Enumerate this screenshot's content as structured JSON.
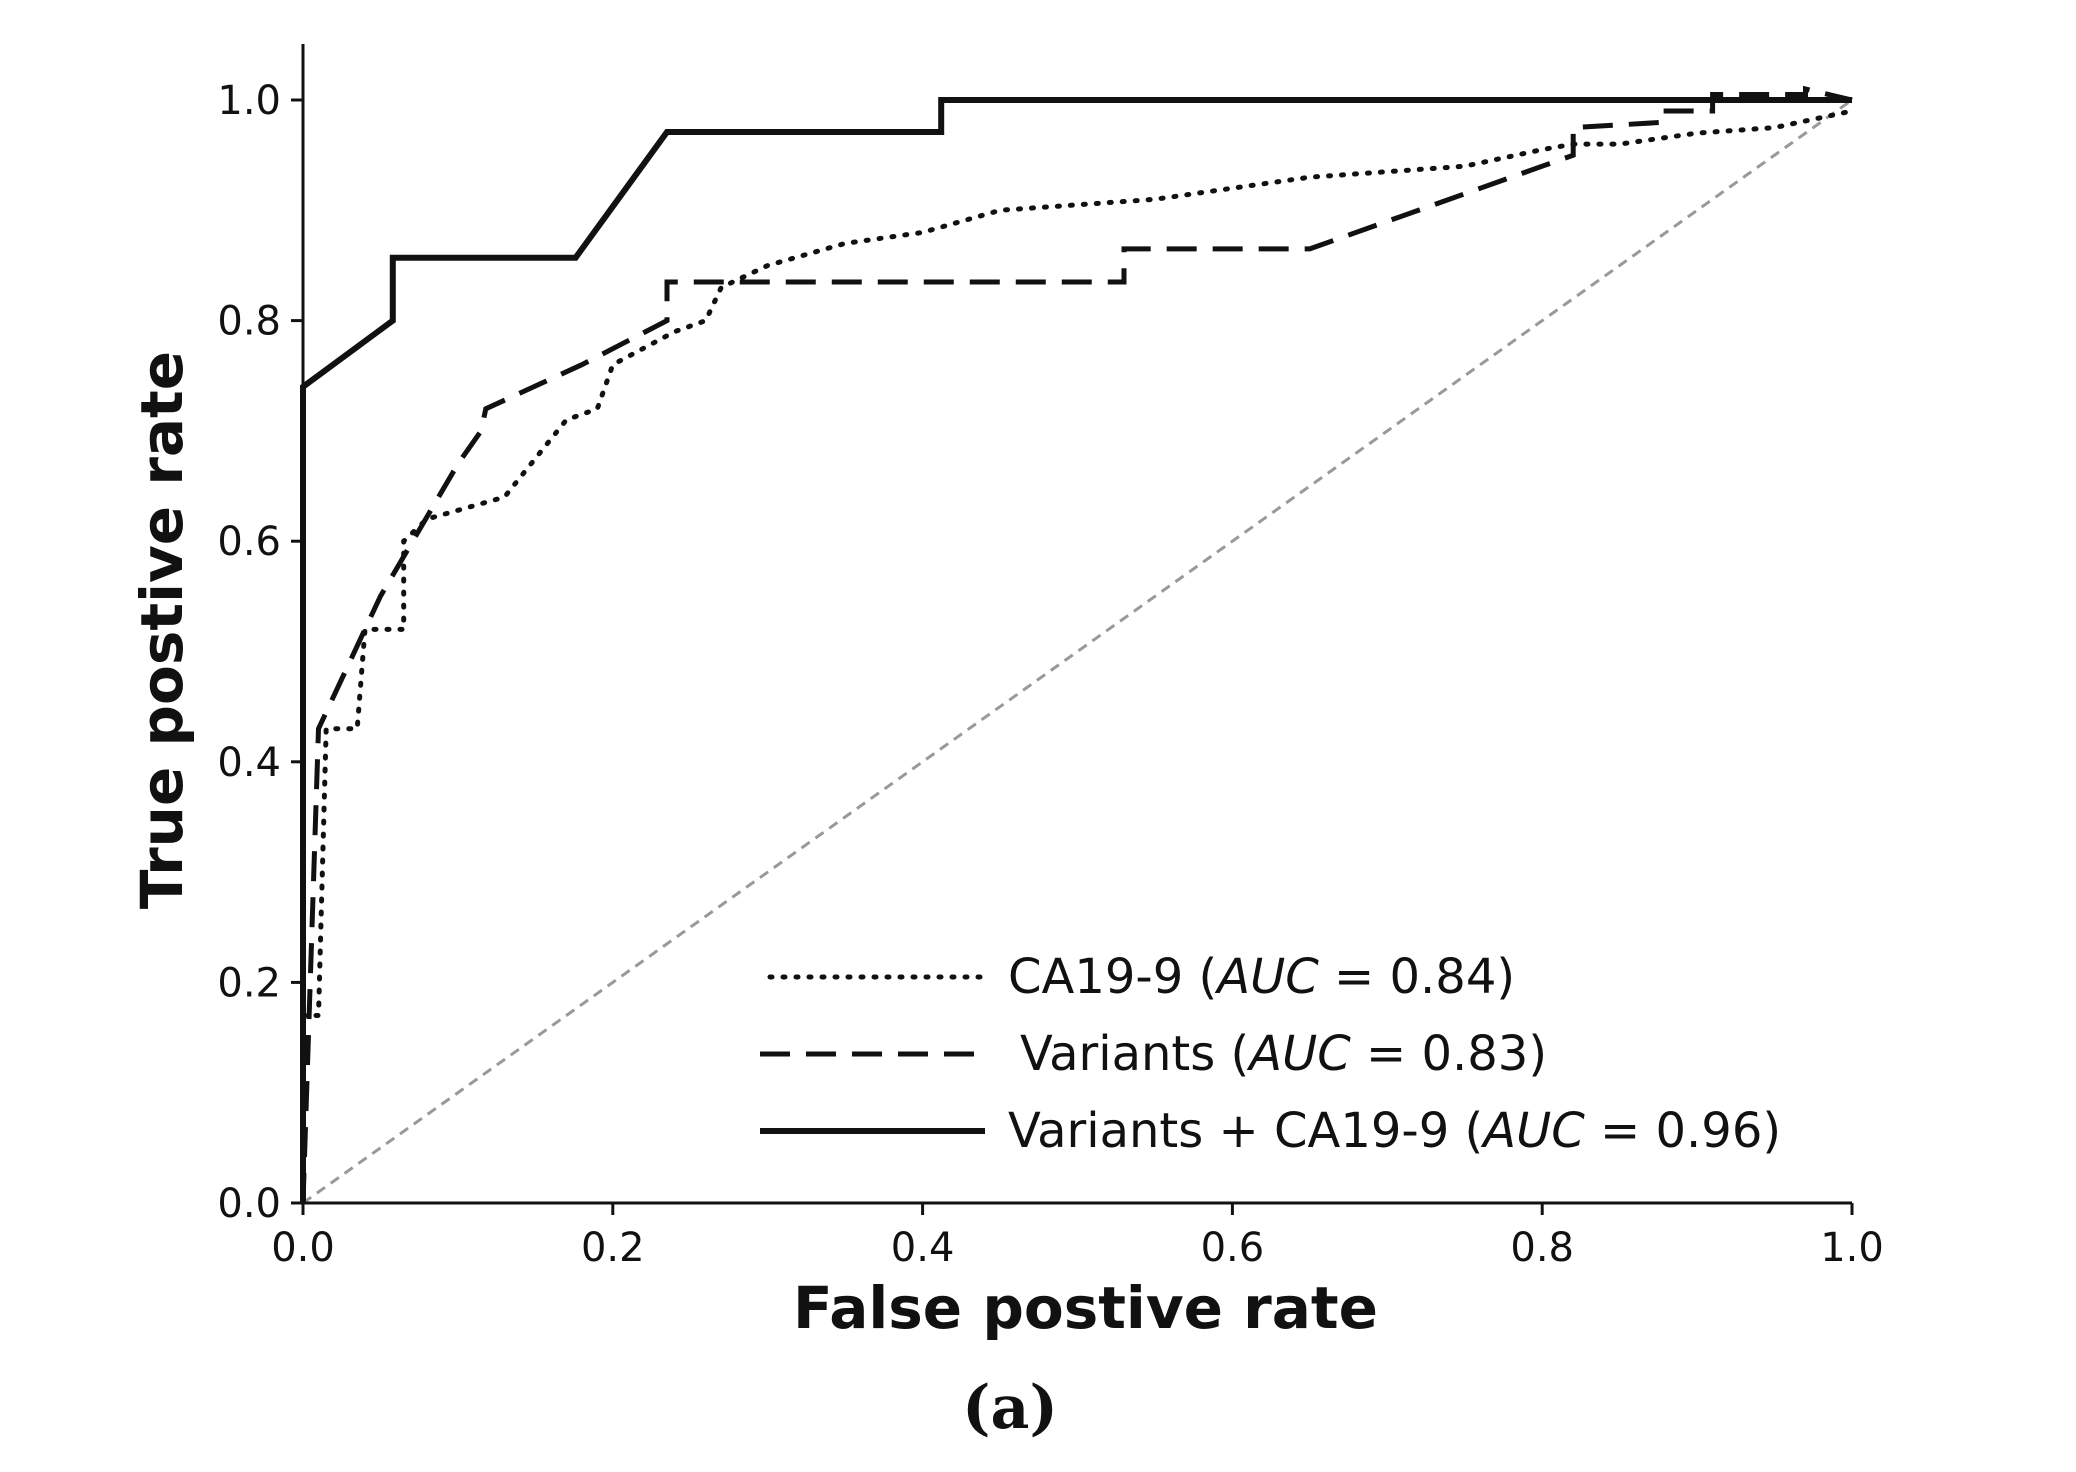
{
  "chart_data": {
    "type": "line",
    "title": "",
    "xlabel": "False postive rate",
    "ylabel": "True postive rate",
    "caption": "(a)",
    "xlim": [
      0.0,
      1.0
    ],
    "ylim": [
      0.0,
      1.05
    ],
    "xticks": [
      "0.0",
      "0.2",
      "0.4",
      "0.6",
      "0.8",
      "1.0"
    ],
    "yticks": [
      "0.0",
      "0.2",
      "0.4",
      "0.6",
      "0.8",
      "1.0"
    ],
    "grid": false,
    "legend_position": "bottom-right",
    "reference_line": {
      "name": "chance",
      "x": [
        0.0,
        1.0
      ],
      "y": [
        0.0,
        1.0
      ],
      "color": "#999999",
      "style": "dashed"
    },
    "series": [
      {
        "name": "CA19-9",
        "auc_label": "AUC",
        "auc_value": "0.84",
        "style": "dotted",
        "x": [
          0.0,
          0.005,
          0.01,
          0.015,
          0.035,
          0.04,
          0.065,
          0.065,
          0.08,
          0.13,
          0.17,
          0.19,
          0.2,
          0.24,
          0.26,
          0.27,
          0.3,
          0.35,
          0.4,
          0.45,
          0.5,
          0.55,
          0.6,
          0.65,
          0.7,
          0.75,
          0.8,
          0.82,
          0.85,
          0.9,
          0.95,
          1.0
        ],
        "y": [
          0.17,
          0.17,
          0.17,
          0.43,
          0.43,
          0.52,
          0.52,
          0.6,
          0.62,
          0.64,
          0.71,
          0.72,
          0.76,
          0.79,
          0.8,
          0.83,
          0.85,
          0.87,
          0.88,
          0.9,
          0.905,
          0.91,
          0.92,
          0.93,
          0.935,
          0.94,
          0.955,
          0.96,
          0.96,
          0.97,
          0.975,
          0.99
        ]
      },
      {
        "name": "Variants",
        "auc_label": "AUC",
        "auc_value": "0.83",
        "style": "dashed",
        "x": [
          0.0,
          0.01,
          0.05,
          0.1,
          0.115,
          0.118,
          0.18,
          0.235,
          0.235,
          0.27,
          0.53,
          0.53,
          0.65,
          0.8,
          0.82,
          0.82,
          0.88,
          0.88,
          0.91,
          0.91,
          0.95,
          0.97,
          0.97,
          1.0
        ],
        "y": [
          0.0,
          0.43,
          0.55,
          0.67,
          0.7,
          0.72,
          0.76,
          0.8,
          0.835,
          0.835,
          0.835,
          0.865,
          0.865,
          0.94,
          0.95,
          0.975,
          0.98,
          0.99,
          0.99,
          1.005,
          1.005,
          1.005,
          1.01,
          1.0
        ]
      },
      {
        "name": "Variants + CA19-9",
        "auc_label": "AUC",
        "auc_value": "0.96",
        "style": "solid",
        "x": [
          0.0,
          0.0,
          0.058,
          0.058,
          0.176,
          0.235,
          0.412,
          0.412,
          1.0
        ],
        "y": [
          0.0,
          0.74,
          0.8,
          0.857,
          0.857,
          0.971,
          0.971,
          1.0,
          1.0
        ]
      }
    ]
  }
}
